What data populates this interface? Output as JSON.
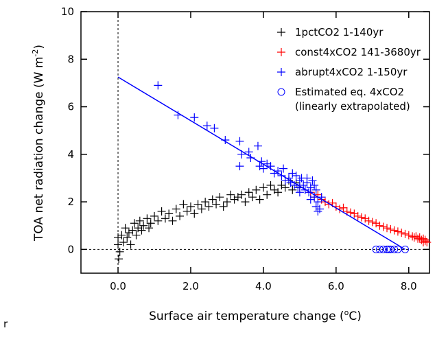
{
  "chart_data": {
    "type": "scatter",
    "xlabel": [
      "Surface air temperature change (",
      "o",
      "C)"
    ],
    "ylabel": [
      "TOA net radiation change (W m",
      "-2",
      ")"
    ],
    "footnote": "r",
    "xlim": [
      -1.02,
      8.57
    ],
    "ylim": [
      -1,
      10
    ],
    "xticks": [
      {
        "value": 0,
        "label": "0.0"
      },
      {
        "value": 2,
        "label": "2.0"
      },
      {
        "value": 4,
        "label": "4.0"
      },
      {
        "value": 6,
        "label": "6.0"
      },
      {
        "value": 8,
        "label": "8.0"
      }
    ],
    "yticks": [
      0,
      2,
      4,
      6,
      8,
      10
    ],
    "legend": "upper right",
    "series": [
      {
        "name": "1pctCO2 1-140yr",
        "color": "#000000",
        "marker": "plus",
        "x": [
          0.0,
          0.0,
          0.02,
          0.05,
          0.1,
          0.15,
          0.2,
          0.25,
          0.3,
          0.35,
          0.4,
          0.45,
          0.5,
          0.55,
          0.6,
          0.65,
          0.7,
          0.8,
          0.85,
          0.9,
          1.0,
          1.1,
          1.2,
          1.3,
          1.4,
          1.5,
          1.6,
          1.7,
          1.8,
          1.9,
          2.0,
          2.1,
          2.2,
          2.3,
          2.4,
          2.5,
          2.6,
          2.7,
          2.8,
          2.9,
          3.0,
          3.1,
          3.2,
          3.3,
          3.4,
          3.5,
          3.6,
          3.7,
          3.8,
          3.9,
          4.0,
          4.1,
          4.2,
          4.3,
          4.4,
          4.5,
          4.6,
          4.7,
          4.8,
          4.9,
          5.0
        ],
        "values": [
          0.5,
          0.2,
          -0.4,
          -0.1,
          0.6,
          0.3,
          0.9,
          0.5,
          0.7,
          0.2,
          0.8,
          1.1,
          0.6,
          0.9,
          1.2,
          0.8,
          1.0,
          1.3,
          0.9,
          1.1,
          1.4,
          1.2,
          1.6,
          1.3,
          1.5,
          1.2,
          1.7,
          1.4,
          1.9,
          1.6,
          1.8,
          1.5,
          1.9,
          1.7,
          2.0,
          1.8,
          2.1,
          1.9,
          2.2,
          1.8,
          2.0,
          2.3,
          2.1,
          2.2,
          2.3,
          2.0,
          2.4,
          2.2,
          2.5,
          2.1,
          2.6,
          2.3,
          2.7,
          2.5,
          2.4,
          2.7,
          2.6,
          2.9,
          2.5,
          2.8,
          2.6
        ]
      },
      {
        "name": "const4xCO2 141-3680yr",
        "color": "#ff0000",
        "marker": "plus",
        "x": [
          5.3,
          5.4,
          5.5,
          5.6,
          5.7,
          5.8,
          5.9,
          6.0,
          6.1,
          6.2,
          6.3,
          6.4,
          6.5,
          6.6,
          6.7,
          6.8,
          6.9,
          7.0,
          7.1,
          7.2,
          7.3,
          7.4,
          7.5,
          7.6,
          7.7,
          7.8,
          7.9,
          8.0,
          8.1,
          8.15,
          8.2,
          8.25,
          8.3,
          8.35,
          8.4,
          8.45,
          8.5,
          8.45,
          8.4
        ],
        "values": [
          2.4,
          2.2,
          2.3,
          2.1,
          2.0,
          1.9,
          1.95,
          1.8,
          1.7,
          1.75,
          1.6,
          1.55,
          1.5,
          1.4,
          1.35,
          1.3,
          1.2,
          1.15,
          1.1,
          1.0,
          0.95,
          0.9,
          0.85,
          0.8,
          0.75,
          0.7,
          0.65,
          0.6,
          0.55,
          0.5,
          0.55,
          0.45,
          0.5,
          0.4,
          0.45,
          0.35,
          0.3,
          0.4,
          0.3
        ]
      },
      {
        "name": "abrupt4xCO2 1-150yr",
        "color": "#0000ff",
        "marker": "plus",
        "x": [
          1.1,
          1.65,
          2.1,
          2.45,
          2.65,
          2.95,
          3.35,
          3.35,
          3.4,
          3.6,
          3.65,
          3.85,
          3.9,
          3.95,
          4.0,
          4.1,
          4.2,
          4.3,
          4.4,
          4.5,
          4.55,
          4.6,
          4.7,
          4.75,
          4.8,
          4.85,
          4.9,
          4.95,
          5.0,
          5.05,
          5.1,
          5.15,
          5.2,
          5.25,
          5.3,
          5.35,
          5.4,
          5.45,
          5.5,
          5.5,
          5.45,
          5.4,
          5.3,
          5.6,
          5.2,
          5.0,
          5.55
        ],
        "values": [
          6.9,
          5.65,
          5.55,
          5.2,
          5.1,
          4.6,
          4.55,
          3.5,
          4.0,
          4.1,
          3.85,
          4.35,
          3.5,
          3.7,
          3.4,
          3.6,
          3.5,
          3.2,
          3.3,
          3.1,
          3.4,
          2.9,
          3.0,
          2.8,
          3.2,
          2.7,
          3.1,
          2.6,
          2.9,
          3.0,
          2.7,
          2.5,
          2.8,
          2.4,
          2.6,
          2.9,
          2.2,
          2.5,
          2.0,
          1.6,
          1.8,
          2.7,
          2.1,
          2.2,
          3.0,
          2.4,
          1.7
        ]
      },
      {
        "name": "Estimated eq. 4xCO2",
        "note": "(linearly extrapolated)",
        "color": "#0000ff",
        "marker": "circle",
        "x": [
          7.1,
          7.2,
          7.3,
          7.4,
          7.45,
          7.5,
          7.6,
          7.7,
          7.9
        ],
        "values": [
          0,
          0,
          0,
          0,
          0,
          0,
          0,
          0,
          0
        ]
      }
    ],
    "fit_line": {
      "color": "#0000ff",
      "x": [
        0,
        7.9
      ],
      "values": [
        7.25,
        0
      ]
    }
  }
}
